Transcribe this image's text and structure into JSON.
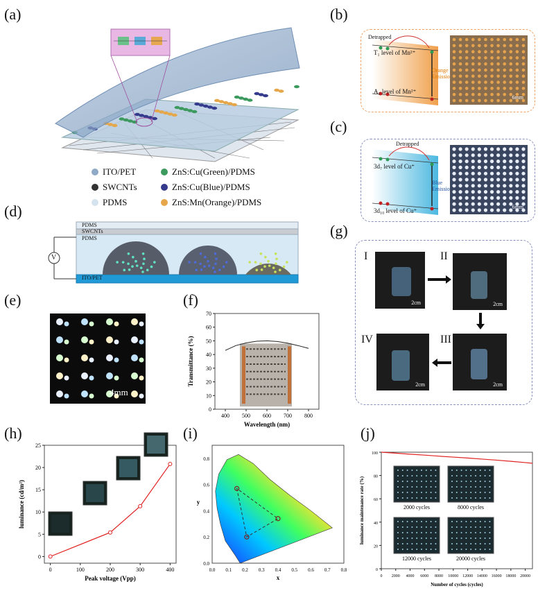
{
  "panels": {
    "a": "(a)",
    "b": "(b)",
    "c": "(c)",
    "d": "(d)",
    "e": "(e)",
    "f": "(f)",
    "g": "(g)",
    "h": "(h)",
    "i": "(i)",
    "j": "(j)"
  },
  "legend": [
    {
      "label": "ITO/PET",
      "color": "#8fa9c6"
    },
    {
      "label": "ZnS:Cu(Green)/PDMS",
      "color": "#3d9a5e"
    },
    {
      "label": "SWCNTs",
      "color": "#333333"
    },
    {
      "label": "ZnS:Cu(Blue)/PDMS",
      "color": "#353a8c"
    },
    {
      "label": "PDMS",
      "color": "#d4e3ee"
    },
    {
      "label": "ZnS:Mn(Orange)/PDMS",
      "color": "#e6a64a"
    }
  ],
  "panel_b": {
    "detrapped": "Detrapped",
    "upper_level": "T₁ level of Mn²⁺",
    "lower_level": "A₁ level of Mn²⁺",
    "emission": "Orange Emission",
    "scale": "6mm",
    "accent": "#f0a04b"
  },
  "panel_c": {
    "detrapped": "Detrapped",
    "upper_level": "3d₇ level of Cu⁺",
    "lower_level": "3d₁₀ level of Cu⁺",
    "emission": "Blue Emission",
    "scale": "6mm",
    "accent": "#4cb8e0"
  },
  "panel_d": {
    "layers": [
      "PDMS",
      "SWCNTs",
      "PDMS",
      "ITO/PET"
    ],
    "source": "V"
  },
  "panel_e": {
    "scale": "4mm"
  },
  "panel_f": {
    "scale_label": ""
  },
  "panel_g": {
    "steps": [
      "I",
      "II",
      "III",
      "IV"
    ],
    "scale": "2cm"
  },
  "panel_j": {
    "cycle_labels": [
      "2000 cycles",
      "8000 cycles",
      "12000 cycles",
      "20000 cycles"
    ]
  },
  "chart_data": [
    {
      "id": "f",
      "type": "line",
      "xlabel": "Wavelength (nm)",
      "ylabel": "Transmittance (%)",
      "xlim": [
        350,
        850
      ],
      "ylim": [
        0,
        70
      ],
      "xticks": [
        400,
        500,
        600,
        700,
        800
      ],
      "yticks": [
        0,
        10,
        20,
        30,
        40,
        50,
        60,
        70
      ],
      "x": [
        400,
        450,
        500,
        550,
        600,
        650,
        700,
        750,
        800
      ],
      "values": [
        43,
        46.5,
        48.5,
        49.7,
        50,
        49.5,
        48.3,
        46.5,
        44.5
      ]
    },
    {
      "id": "h",
      "type": "line",
      "xlabel": "Peak voltage (Vpp)",
      "ylabel": "luminance (cd/m²)",
      "xlim": [
        -20,
        420
      ],
      "ylim": [
        -1.5,
        25
      ],
      "xticks": [
        0,
        100,
        200,
        300,
        400
      ],
      "yticks": [
        0,
        5,
        10,
        15,
        20,
        25
      ],
      "x": [
        0,
        200,
        300,
        400
      ],
      "values": [
        0,
        5.4,
        11.3,
        20.8
      ],
      "color": "#e02020"
    },
    {
      "id": "i",
      "type": "scatter",
      "xlabel": "x",
      "ylabel": "y",
      "xlim": [
        0,
        0.8
      ],
      "ylim": [
        0,
        0.9
      ],
      "xticks": [
        "0.0",
        "0.1",
        "0.2",
        "0.3",
        "0.4",
        "0.5",
        "0.6",
        "0.7",
        "0.8"
      ],
      "yticks": [
        "0.0",
        "0.2",
        "0.4",
        "0.6",
        "0.8"
      ],
      "points": [
        [
          0.15,
          0.57
        ],
        [
          0.21,
          0.2
        ],
        [
          0.4,
          0.34
        ]
      ],
      "tick_extra": "0.3+"
    },
    {
      "id": "j",
      "type": "line",
      "xlabel": "Number of cycles (cycles)",
      "ylabel": "luminance maintenance rate (%)",
      "xlim": [
        0,
        21000
      ],
      "ylim": [
        0,
        100
      ],
      "xticks": [
        0,
        2000,
        4000,
        6000,
        8000,
        10000,
        12000,
        14000,
        16000,
        18000,
        20000
      ],
      "yticks": [
        0,
        20,
        40,
        60,
        80,
        100
      ],
      "x": [
        0,
        2000,
        4000,
        6000,
        8000,
        10000,
        12000,
        14000,
        16000,
        18000,
        20000,
        21000
      ],
      "values": [
        100,
        99.2,
        98.3,
        97.5,
        96.6,
        95.8,
        95,
        94.1,
        93.2,
        92.2,
        91.1,
        90.5
      ],
      "color": "#e02020"
    }
  ]
}
